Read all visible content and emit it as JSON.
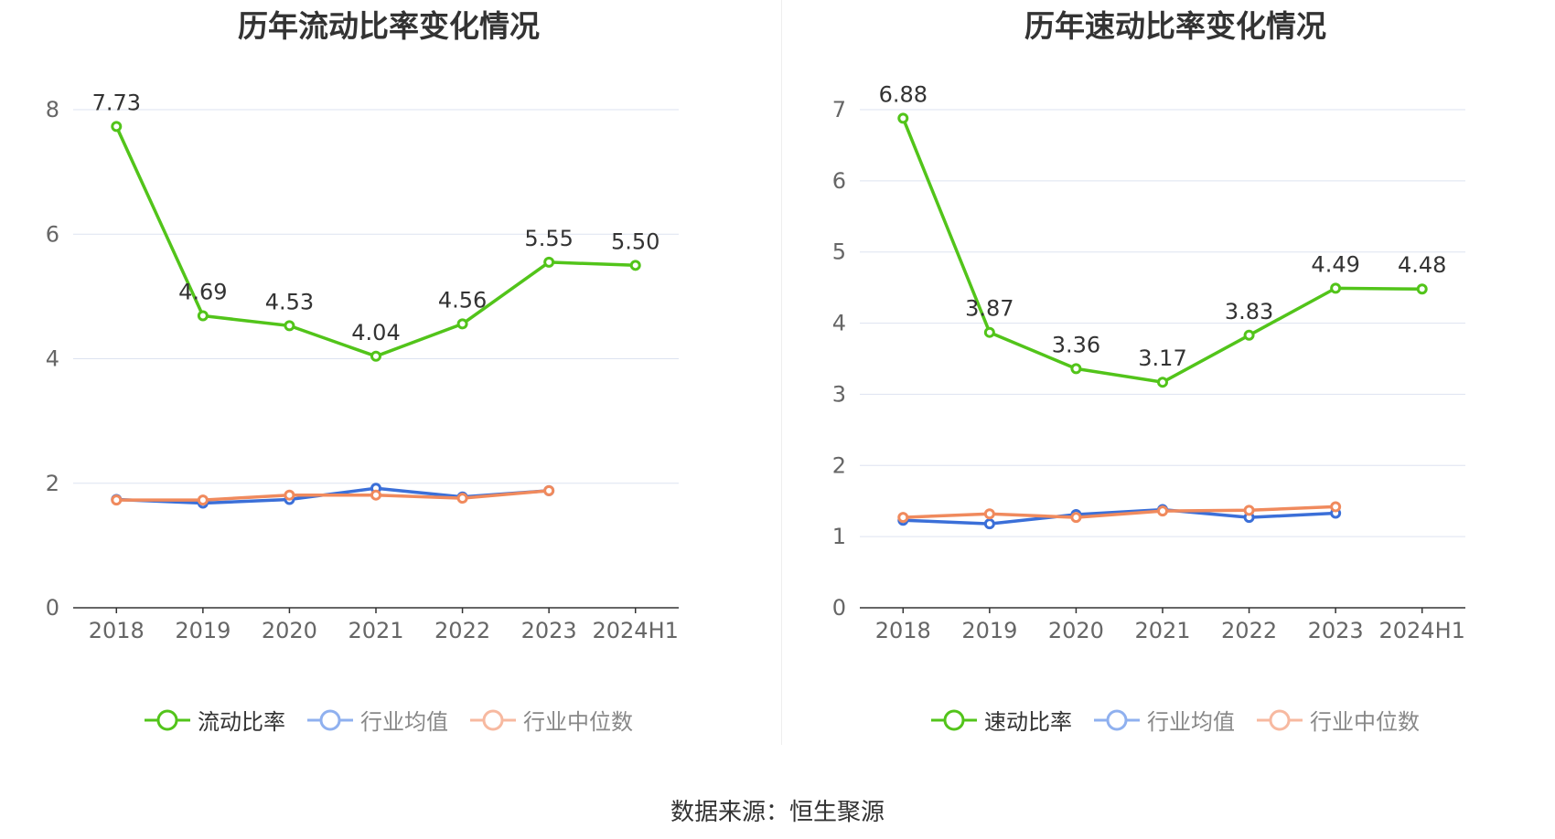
{
  "source_text": "数据来源：恒生聚源",
  "colors": {
    "main": "#52c41a",
    "avg": "#3b6fd8",
    "median": "#f08a5d",
    "grid": "#dde3f0",
    "axis": "#333333",
    "tick": "#666666"
  },
  "chart_data": [
    {
      "type": "line",
      "title": "历年流动比率变化情况",
      "categories": [
        "2018",
        "2019",
        "2020",
        "2021",
        "2022",
        "2023",
        "2024H1"
      ],
      "ylim": [
        0,
        8
      ],
      "yticks": [
        0,
        2,
        4,
        6,
        8
      ],
      "series": [
        {
          "name": "流动比率",
          "values": [
            7.73,
            4.69,
            4.53,
            4.04,
            4.56,
            5.55,
            5.5
          ],
          "labels": [
            "7.73",
            "4.69",
            "4.53",
            "4.04",
            "4.56",
            "5.55",
            "5.50"
          ]
        },
        {
          "name": "行业均值",
          "values": [
            1.74,
            1.68,
            1.74,
            1.92,
            1.78,
            1.88,
            null
          ]
        },
        {
          "name": "行业中位数",
          "values": [
            1.73,
            1.73,
            1.81,
            1.81,
            1.76,
            1.88,
            null
          ]
        }
      ],
      "grid": true,
      "legend": "bottom-center"
    },
    {
      "type": "line",
      "title": "历年速动比率变化情况",
      "categories": [
        "2018",
        "2019",
        "2020",
        "2021",
        "2022",
        "2023",
        "2024H1"
      ],
      "ylim": [
        0,
        7
      ],
      "yticks": [
        0,
        1,
        2,
        3,
        4,
        5,
        6,
        7
      ],
      "series": [
        {
          "name": "速动比率",
          "values": [
            6.88,
            3.87,
            3.36,
            3.17,
            3.83,
            4.49,
            4.48
          ],
          "labels": [
            "6.88",
            "3.87",
            "3.36",
            "3.17",
            "3.83",
            "4.49",
            "4.48"
          ]
        },
        {
          "name": "行业均值",
          "values": [
            1.23,
            1.18,
            1.31,
            1.38,
            1.27,
            1.33,
            null
          ]
        },
        {
          "name": "行业中位数",
          "values": [
            1.27,
            1.32,
            1.27,
            1.36,
            1.37,
            1.42,
            null
          ]
        }
      ],
      "grid": true,
      "legend": "bottom-center"
    }
  ]
}
